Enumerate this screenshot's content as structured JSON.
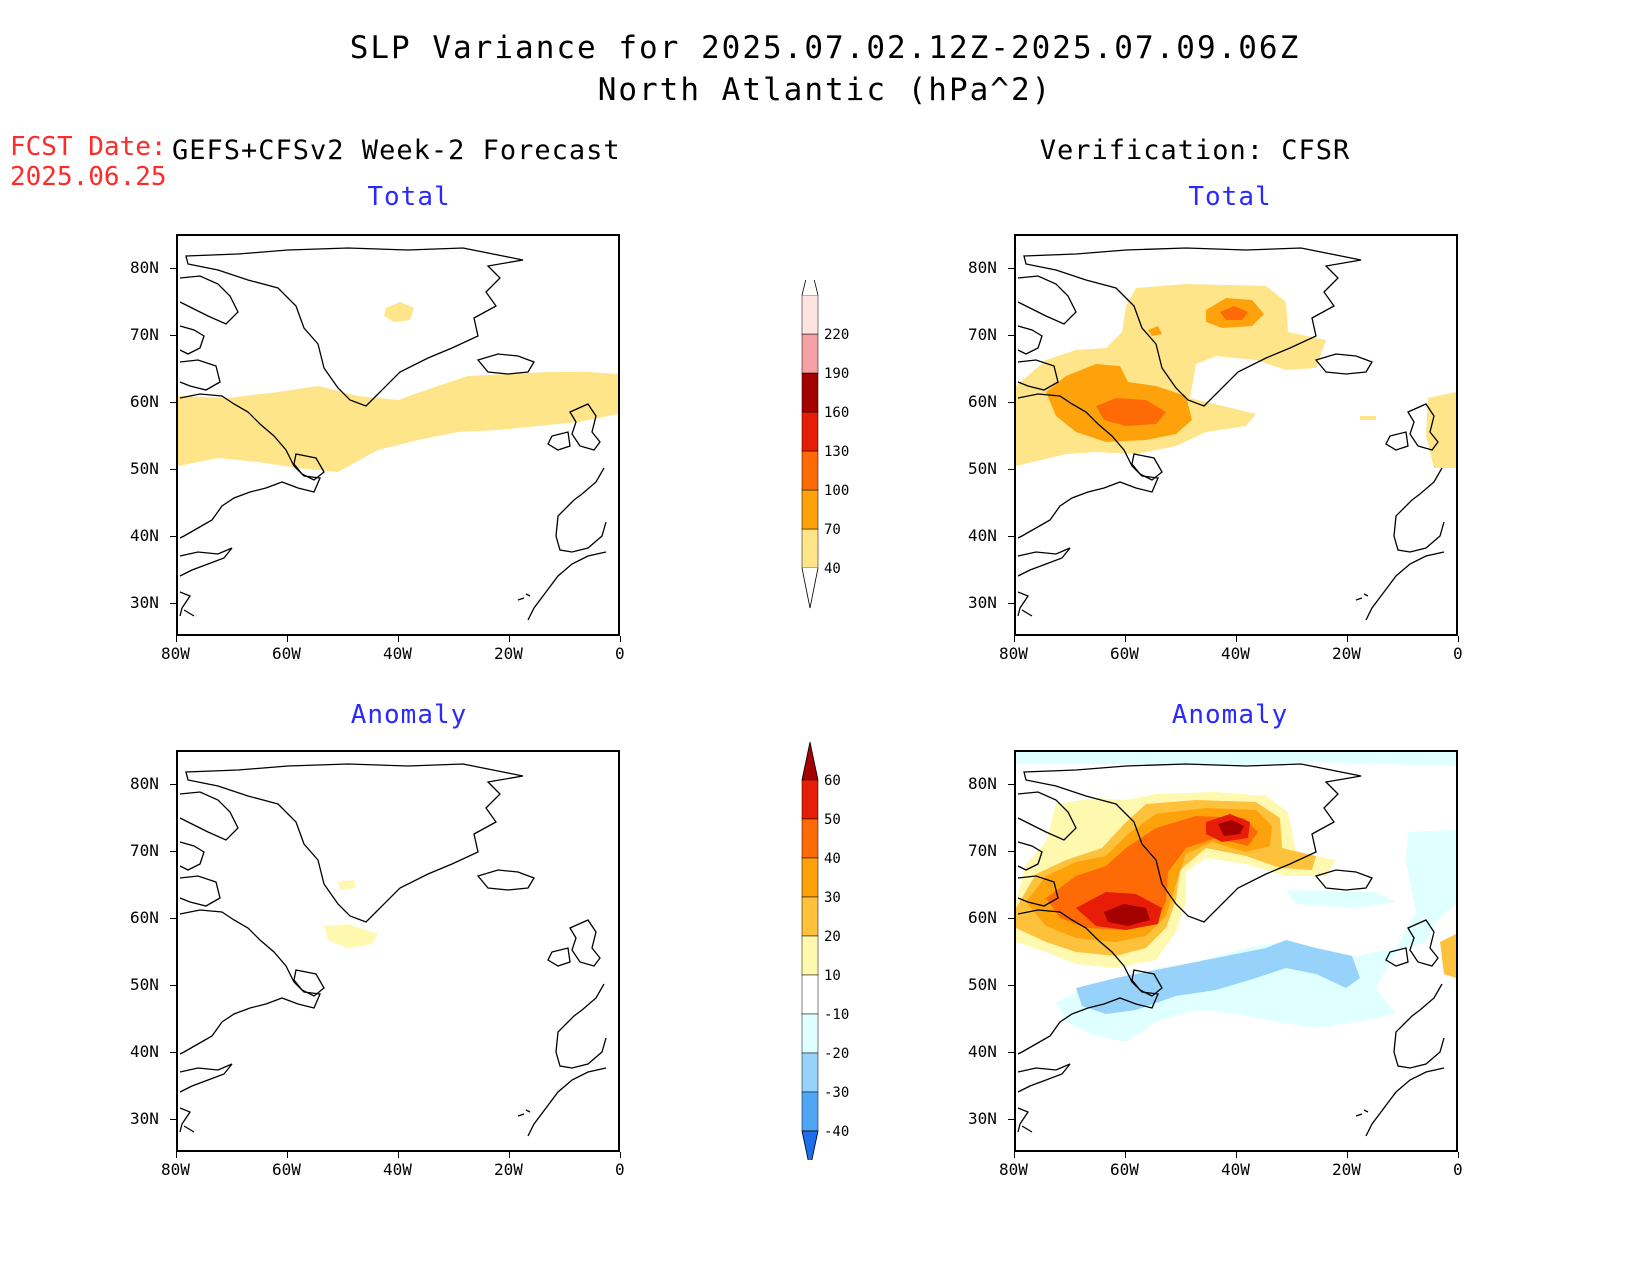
{
  "header": {
    "title_line1": "SLP Variance for 2025.07.02.12Z-2025.07.09.06Z",
    "title_line2": "North Atlantic (hPa^2)"
  },
  "forecast_date": {
    "label": "FCST Date:",
    "value": "2025.06.25"
  },
  "columns": {
    "left": "GEFS+CFSv2 Week-2 Forecast",
    "right": "Verification: CFSR"
  },
  "panels": {
    "forecast_total_title": "Total",
    "forecast_anomaly_title": "Anomaly",
    "verification_total_title": "Total",
    "verification_anomaly_title": "Anomaly"
  },
  "axes": {
    "lat_labels": [
      "80N",
      "70N",
      "60N",
      "50N",
      "40N",
      "30N"
    ],
    "lon_labels": [
      "80W",
      "60W",
      "40W",
      "20W",
      "0"
    ],
    "lat_range": [
      25,
      85
    ],
    "lon_range": [
      -80,
      0
    ]
  },
  "colorbars": {
    "total": {
      "levels": [
        "40",
        "70",
        "100",
        "130",
        "160",
        "190",
        "220"
      ],
      "colors": [
        "#fee589",
        "#fea20c",
        "#fe6a06",
        "#e81d07",
        "#a50000",
        "#f4a0a4",
        "#fde4e0"
      ]
    },
    "anomaly": {
      "levels": [
        "60",
        "50",
        "40",
        "30",
        "20",
        "10",
        "-10",
        "-20",
        "-30",
        "-40"
      ],
      "colors": [
        "#a50000",
        "#e81d07",
        "#fe6a06",
        "#fea20c",
        "#fec13c",
        "#fff9b0",
        "#ffffff",
        "#e0ffff",
        "#96d2fa",
        "#50a5f5",
        "#1e6eeb"
      ]
    }
  },
  "map_colors": {
    "v40": "#fee589",
    "v70": "#fea20c",
    "v100": "#fe6a06",
    "a10": "#fff9b0",
    "a20": "#fec13c",
    "a30": "#fea20c",
    "a40": "#fe6a06",
    "a50": "#e81d07",
    "a60": "#a50000",
    "an10": "#e0ffff",
    "an20": "#96d2fa"
  }
}
